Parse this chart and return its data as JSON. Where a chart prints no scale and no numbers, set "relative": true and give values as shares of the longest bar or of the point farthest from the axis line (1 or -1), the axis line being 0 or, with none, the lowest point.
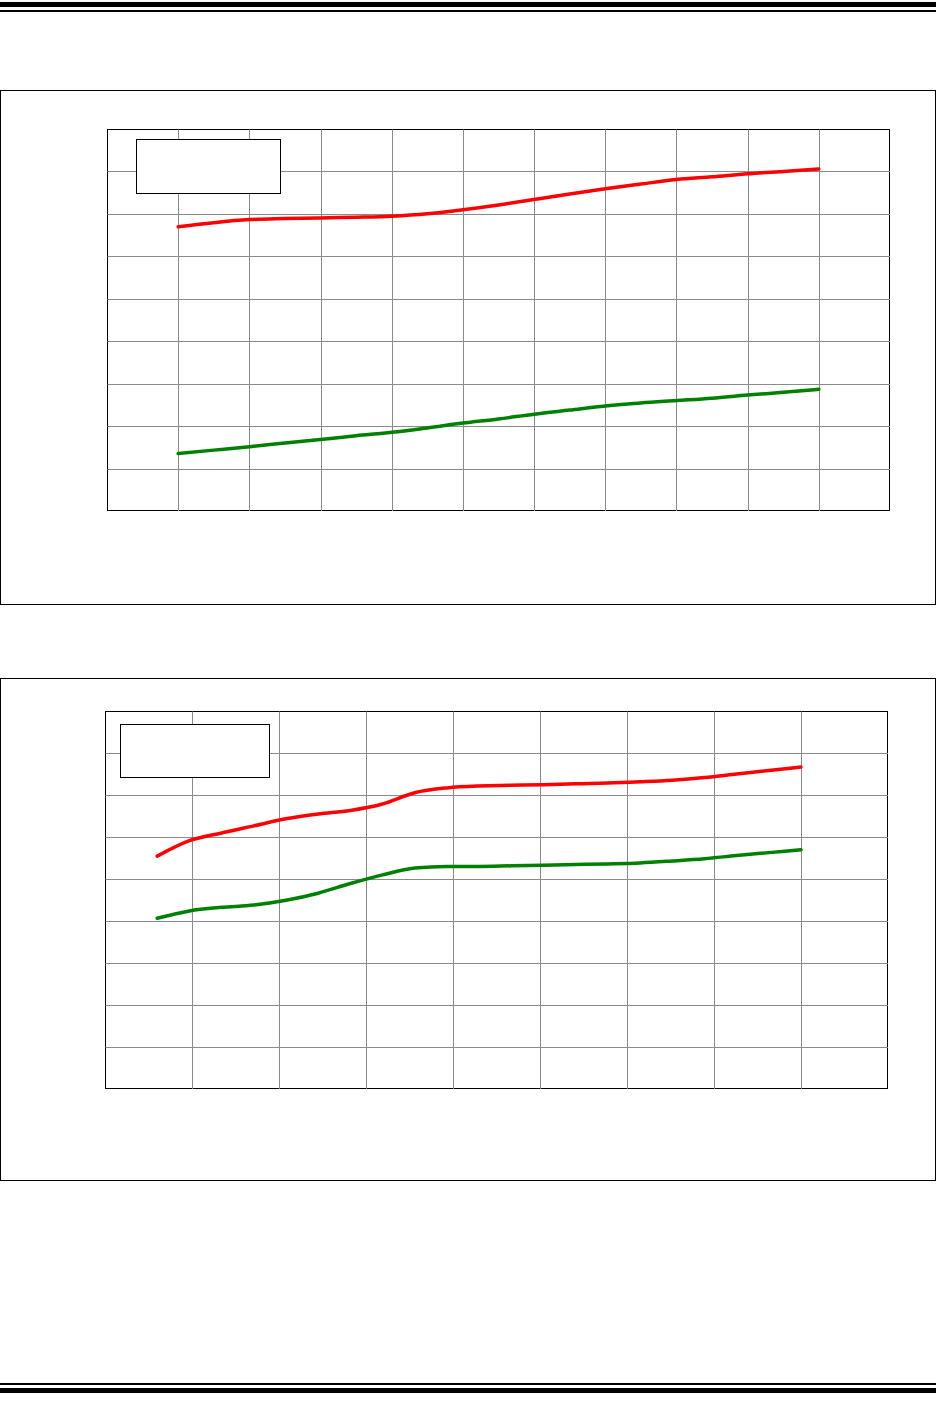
{
  "chart_data": [
    {
      "type": "line",
      "relative": true,
      "grid": true,
      "categories": [
        null,
        null,
        null,
        null,
        null,
        null,
        null,
        null,
        null,
        null,
        null,
        null,
        null,
        null,
        null,
        null,
        null,
        null,
        null
      ],
      "series": [
        {
          "color": "#ff0000",
          "values": [
            0.831,
            0.843,
            0.852,
            0.855,
            0.857,
            0.859,
            0.862,
            0.869,
            0.881,
            0.895,
            0.911,
            0.927,
            0.942,
            0.956,
            0.969,
            0.977,
            0.986,
            0.993,
            1.0
          ]
        },
        {
          "color": "#008000",
          "values": [
            0.168,
            0.178,
            0.188,
            0.199,
            0.209,
            0.22,
            0.23,
            0.243,
            0.257,
            0.269,
            0.283,
            0.295,
            0.307,
            0.316,
            0.323,
            0.33,
            0.339,
            0.347,
            0.356
          ]
        }
      ]
    },
    {
      "type": "line",
      "relative": true,
      "grid": true,
      "categories": [
        null,
        null,
        null,
        null,
        null,
        null,
        null,
        null,
        null,
        null,
        null,
        null,
        null,
        null,
        null,
        null,
        null,
        null,
        null,
        null,
        null
      ],
      "series": [
        {
          "color": "#ff0000",
          "values": [
            0.723,
            0.771,
            0.795,
            0.817,
            0.839,
            0.854,
            0.865,
            0.885,
            0.92,
            0.935,
            0.941,
            0.943,
            0.945,
            0.948,
            0.95,
            0.954,
            0.959,
            0.967,
            0.978,
            0.989,
            1.0
          ]
        },
        {
          "color": "#008000",
          "values": [
            0.53,
            0.553,
            0.564,
            0.571,
            0.586,
            0.608,
            0.638,
            0.665,
            0.686,
            0.691,
            0.691,
            0.693,
            0.695,
            0.697,
            0.699,
            0.702,
            0.708,
            0.715,
            0.725,
            0.734,
            0.743
          ]
        }
      ]
    }
  ]
}
